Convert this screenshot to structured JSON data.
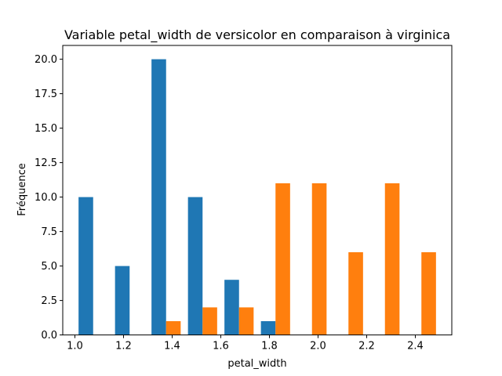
{
  "chart_data": {
    "type": "bar",
    "title": "Variable petal_width de versicolor en comparaison à virginica",
    "xlabel": "petal_width",
    "ylabel": "Fréquence",
    "xlim": [
      0.95,
      2.55
    ],
    "ylim": [
      0,
      21
    ],
    "xticks": [
      "1.0",
      "1.2",
      "1.4",
      "1.6",
      "1.8",
      "2.0",
      "2.2",
      "2.4"
    ],
    "yticks": [
      "0.0",
      "2.5",
      "5.0",
      "7.5",
      "10.0",
      "12.5",
      "15.0",
      "17.5",
      "20.0"
    ],
    "bin_edges": [
      1.0,
      1.15,
      1.3,
      1.45,
      1.6,
      1.75,
      1.9,
      2.05,
      2.2,
      2.35,
      2.5
    ],
    "grid": false,
    "series": [
      {
        "color": "#1f77b4",
        "values": [
          10,
          5,
          20,
          10,
          4,
          1,
          0,
          0,
          0,
          0
        ]
      },
      {
        "color": "#ff7f0e",
        "values": [
          0,
          0,
          1,
          2,
          2,
          11,
          11,
          6,
          11,
          6
        ]
      }
    ]
  }
}
